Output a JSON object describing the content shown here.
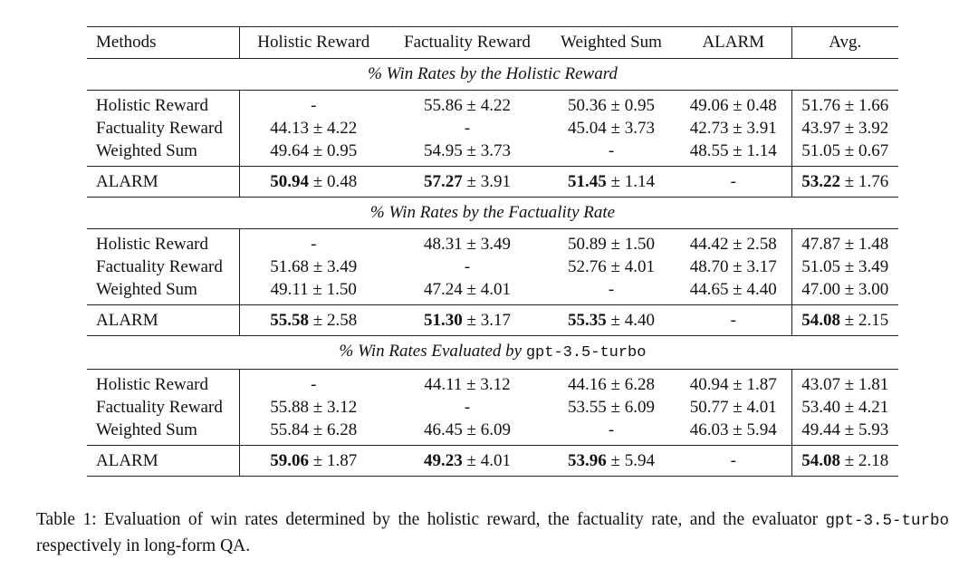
{
  "table": {
    "columns": [
      "Methods",
      "Holistic Reward",
      "Factuality Reward",
      "Weighted Sum",
      "ALARM",
      "Avg."
    ],
    "sections": [
      {
        "title": "% Win Rates by the Holistic Reward",
        "title_mono": "",
        "rows": [
          {
            "method": "Holistic Reward",
            "cells": [
              "-",
              "55.86 ± 4.22",
              "50.36 ± 0.95",
              "49.06 ± 0.48",
              "51.76 ± 1.66"
            ]
          },
          {
            "method": "Factuality Reward",
            "cells": [
              "44.13 ± 4.22",
              "-",
              "45.04 ± 3.73",
              "42.73 ± 3.91",
              "43.97 ± 3.92"
            ]
          },
          {
            "method": "Weighted Sum",
            "cells": [
              "49.64 ± 0.95",
              "54.95 ± 3.73",
              "-",
              "48.55 ± 1.14",
              "51.05 ± 0.67"
            ]
          }
        ],
        "alarm": {
          "method": "ALARM",
          "cells": [
            {
              "bold": "50.94",
              "rest": " ± 0.48"
            },
            {
              "bold": "57.27",
              "rest": " ± 3.91"
            },
            {
              "bold": "51.45",
              "rest": " ± 1.14"
            },
            {
              "bold": "",
              "rest": "-"
            },
            {
              "bold": "53.22",
              "rest": " ± 1.76"
            }
          ]
        }
      },
      {
        "title": "% Win Rates by the Factuality Rate",
        "title_mono": "",
        "rows": [
          {
            "method": "Holistic Reward",
            "cells": [
              "-",
              "48.31 ± 3.49",
              "50.89 ± 1.50",
              "44.42 ± 2.58",
              "47.87 ± 1.48"
            ]
          },
          {
            "method": "Factuality Reward",
            "cells": [
              "51.68 ± 3.49",
              "-",
              "52.76 ± 4.01",
              "48.70 ± 3.17",
              "51.05 ± 3.49"
            ]
          },
          {
            "method": "Weighted Sum",
            "cells": [
              "49.11 ± 1.50",
              "47.24 ± 4.01",
              "-",
              "44.65 ± 4.40",
              "47.00 ± 3.00"
            ]
          }
        ],
        "alarm": {
          "method": "ALARM",
          "cells": [
            {
              "bold": "55.58",
              "rest": " ± 2.58"
            },
            {
              "bold": "51.30",
              "rest": " ± 3.17"
            },
            {
              "bold": "55.35",
              "rest": " ± 4.40"
            },
            {
              "bold": "",
              "rest": "-"
            },
            {
              "bold": "54.08",
              "rest": " ± 2.15"
            }
          ]
        }
      },
      {
        "title": "% Win Rates Evaluated by ",
        "title_mono": "gpt-3.5-turbo",
        "rows": [
          {
            "method": "Holistic Reward",
            "cells": [
              "-",
              "44.11 ± 3.12",
              "44.16 ± 6.28",
              "40.94 ± 1.87",
              "43.07 ± 1.81"
            ]
          },
          {
            "method": "Factuality Reward",
            "cells": [
              "55.88 ± 3.12",
              "-",
              "53.55 ± 6.09",
              "50.77 ± 4.01",
              "53.40 ± 4.21"
            ]
          },
          {
            "method": "Weighted Sum",
            "cells": [
              "55.84 ± 6.28",
              "46.45 ± 6.09",
              "-",
              "46.03 ± 5.94",
              "49.44 ± 5.93"
            ]
          }
        ],
        "alarm": {
          "method": "ALARM",
          "cells": [
            {
              "bold": "59.06",
              "rest": " ± 1.87"
            },
            {
              "bold": "49.23",
              "rest": " ± 4.01"
            },
            {
              "bold": "53.96",
              "rest": " ± 5.94"
            },
            {
              "bold": "",
              "rest": "-"
            },
            {
              "bold": "54.08",
              "rest": " ± 2.18"
            }
          ]
        }
      }
    ]
  },
  "caption": {
    "prefix": "Table 1: Evaluation of win rates determined by the holistic reward, the factuality rate, and the evaluator ",
    "mono": "gpt-3.5-turbo",
    "suffix": " respectively in long-form QA."
  }
}
